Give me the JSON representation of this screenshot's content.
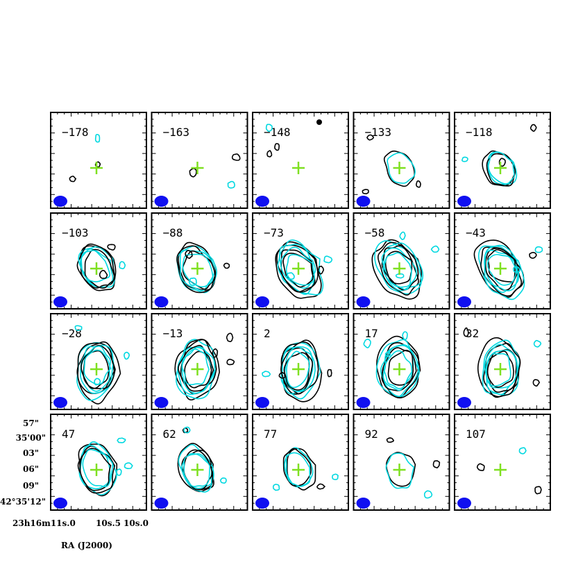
{
  "chart_data": {
    "type": "channel-map",
    "xlabel": "RA (J2000)",
    "ylabel": "",
    "x_tick_labels": [
      "23h16m11s.0",
      "10s.5",
      "10s.0"
    ],
    "y_tick_labels": [
      "57\"",
      "35'00\"",
      "03\"",
      "06\"",
      "09\"",
      "42°35'12\""
    ],
    "velocities": [
      -178,
      -163,
      -148,
      -133,
      -118,
      -103,
      -88,
      -73,
      -58,
      -43,
      -28,
      -13,
      2,
      17,
      32,
      47,
      62,
      77,
      92,
      107
    ],
    "grid": {
      "rows": 4,
      "cols": 5
    },
    "colors": {
      "contour_a": "#000000",
      "contour_b": "#00d8e0",
      "marker": "#7fe020",
      "beam": "#1010f0",
      "frame": "#000000"
    },
    "markers": "green-cross"
  }
}
